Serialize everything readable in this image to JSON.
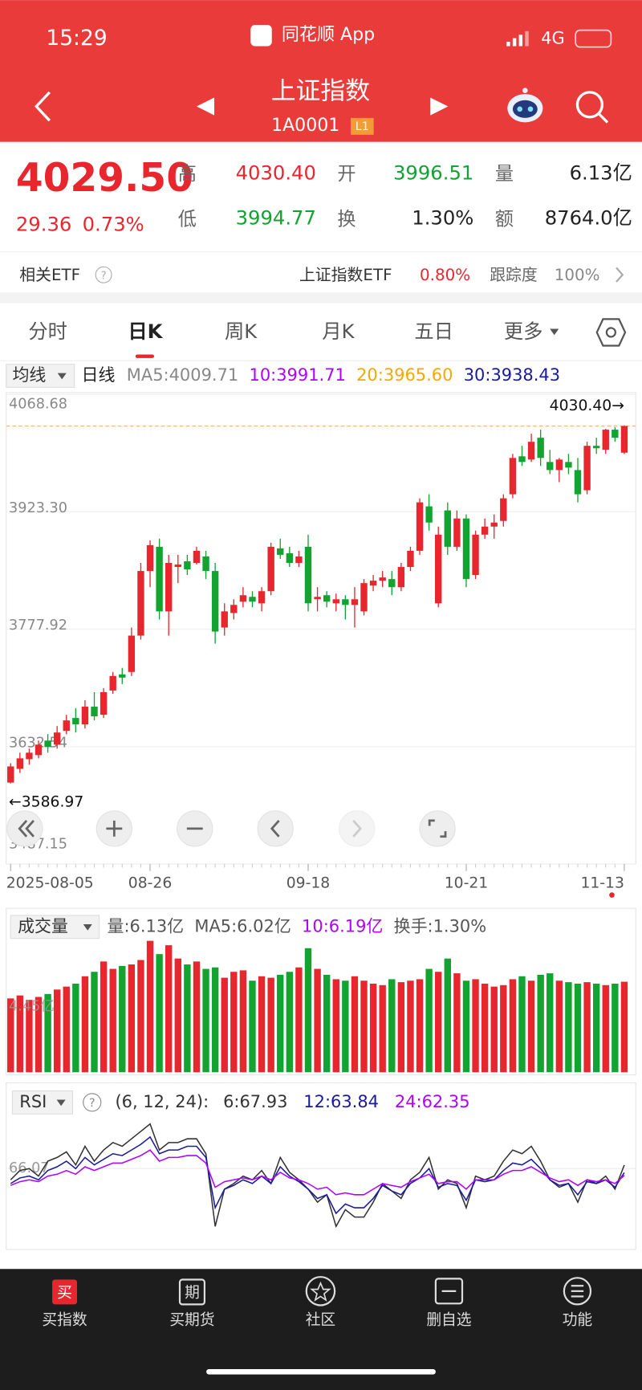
{
  "status_bar": {
    "time": "15:29",
    "app": "同花顺 App",
    "network": "4G"
  },
  "header": {
    "title": "上证指数",
    "code": "1A0001",
    "badge": "L1"
  },
  "quote": {
    "price": "4029.50",
    "change": "29.36",
    "change_pct": "0.73%",
    "fields": [
      {
        "label": "高",
        "value": "4030.40"
      },
      {
        "label": "开",
        "value": "3996.51"
      },
      {
        "label": "量",
        "value": "6.13亿"
      },
      {
        "label": "低",
        "value": "3994.77"
      },
      {
        "label": "换",
        "value": "1.30%"
      },
      {
        "label": "额",
        "value": "8764.0亿"
      }
    ]
  },
  "etf": {
    "label": "相关ETF",
    "help": "?",
    "name": "上证指数ETF",
    "change": "0.80%",
    "tracking_label": "跟踪度",
    "tracking": "100%"
  },
  "tabs": [
    "分时",
    "日K",
    "周K",
    "月K",
    "五日",
    "更多"
  ],
  "kline": {
    "type": "candlestick",
    "legend_button": "均线",
    "period": "日线",
    "ma_labels": [
      "MA5:4009.71",
      "10:3991.71",
      "20:3965.60",
      "30:3938.43"
    ],
    "ma_colors": [
      "#888888",
      "#b000ff",
      "#f2a900",
      "#1a1aa0"
    ],
    "up_color": "#e8262d",
    "down_color": "#12a331",
    "categories": [
      "2025-08-05",
      null,
      null,
      null,
      null,
      null,
      null,
      null,
      null,
      null,
      null,
      null,
      null,
      null,
      null,
      "08-26",
      null,
      null,
      null,
      null,
      null,
      null,
      null,
      null,
      null,
      null,
      null,
      null,
      null,
      null,
      null,
      null,
      "09-18",
      null,
      null,
      null,
      null,
      null,
      null,
      null,
      null,
      null,
      null,
      null,
      null,
      null,
      null,
      null,
      null,
      "10-21",
      null,
      null,
      null,
      null,
      null,
      null,
      null,
      null,
      null,
      null,
      null,
      null,
      null,
      null,
      null,
      null,
      "11-13"
    ],
    "open": [
      3588,
      3605,
      3617,
      3622,
      3640,
      3635,
      3652,
      3668,
      3660,
      3682,
      3672,
      3702,
      3722,
      3725,
      3770,
      3850,
      3880,
      3800,
      3855,
      3862,
      3860,
      3868,
      3850,
      3780,
      3798,
      3812,
      3818,
      3810,
      3825,
      3878,
      3872,
      3860,
      3880,
      3815,
      3820,
      3810,
      3815,
      3808,
      3800,
      3832,
      3838,
      3840,
      3830,
      3855,
      3875,
      3930,
      3810,
      3925,
      3880,
      3915,
      3845,
      3895,
      3905,
      3912,
      3945,
      3992,
      3988,
      4015,
      3985,
      3975,
      3985,
      3975,
      3950,
      4005,
      4000,
      4025,
      3996.51
    ],
    "high": [
      3612,
      3625,
      3630,
      3640,
      3648,
      3658,
      3672,
      3680,
      3690,
      3700,
      3705,
      3725,
      3730,
      3780,
      3860,
      3888,
      3890,
      3870,
      3870,
      3870,
      3880,
      3875,
      3860,
      3810,
      3815,
      3830,
      3825,
      3830,
      3885,
      3890,
      3880,
      3875,
      3895,
      3830,
      3825,
      3822,
      3820,
      3830,
      3840,
      3845,
      3850,
      3850,
      3860,
      3880,
      3940,
      3945,
      3905,
      3935,
      3925,
      3920,
      3900,
      3915,
      3920,
      3945,
      3995,
      4005,
      4020,
      4025,
      4000,
      3990,
      3995,
      3990,
      4010,
      4015,
      4026,
      4028,
      4030.4
    ],
    "low": [
      3586.97,
      3600,
      3610,
      3618,
      3625,
      3630,
      3648,
      3650,
      3655,
      3665,
      3668,
      3698,
      3710,
      3720,
      3765,
      3830,
      3790,
      3770,
      3835,
      3845,
      3858,
      3840,
      3760,
      3770,
      3790,
      3805,
      3805,
      3800,
      3820,
      3865,
      3855,
      3855,
      3800,
      3800,
      3805,
      3800,
      3790,
      3780,
      3795,
      3825,
      3830,
      3820,
      3825,
      3850,
      3870,
      3900,
      3805,
      3870,
      3875,
      3830,
      3840,
      3890,
      3890,
      3905,
      3940,
      3980,
      3985,
      3980,
      3970,
      3960,
      3970,
      3935,
      3945,
      3995,
      3995,
      4010,
      3994.77
    ],
    "close": [
      3608,
      3618,
      3625,
      3635,
      3632,
      3650,
      3665,
      3660,
      3682,
      3670,
      3700,
      3720,
      3718,
      3770,
      3850,
      3882,
      3800,
      3860,
      3858,
      3852,
      3875,
      3850,
      3775,
      3800,
      3808,
      3820,
      3812,
      3825,
      3880,
      3870,
      3860,
      3868,
      3810,
      3818,
      3812,
      3815,
      3808,
      3815,
      3835,
      3838,
      3842,
      3830,
      3855,
      3875,
      3935,
      3910,
      3895,
      3880,
      3915,
      3840,
      3895,
      3905,
      3910,
      3940,
      3990,
      3985,
      4010,
      3990,
      3975,
      3988,
      3978,
      3945,
      4005,
      4002,
      4025,
      4015,
      4029.5
    ],
    "ylim": [
      3487.15,
      4068.68
    ],
    "yticks": [
      3487.15,
      3632.54,
      3777.92,
      {
        "value": 3923.3,
        "label": "3923.30"
      },
      4068.68
    ],
    "high_marker": "4030.40→",
    "low_marker": "←3586.97"
  },
  "volume": {
    "type": "bar",
    "legend_button": "成交量",
    "legend": [
      {
        "text": "量:6.13亿",
        "color": "#555555"
      },
      {
        "text": "MA5:6.02亿",
        "color": "#555555"
      },
      {
        "text": "10:6.19亿",
        "color": "#b000ff"
      },
      {
        "text": "换手:1.30%",
        "color": "#555555"
      }
    ],
    "values": [
      5.0,
      5.2,
      4.9,
      5.1,
      5.3,
      5.6,
      5.8,
      6.0,
      6.5,
      6.8,
      7.5,
      7.0,
      7.2,
      7.3,
      7.6,
      8.9,
      8.0,
      8.6,
      7.7,
      7.3,
      7.5,
      7.0,
      7.1,
      6.4,
      6.8,
      6.9,
      6.2,
      6.5,
      6.4,
      6.6,
      6.8,
      7.1,
      8.4,
      7.0,
      6.6,
      6.3,
      6.2,
      6.5,
      6.2,
      6.0,
      5.9,
      6.3,
      6.1,
      6.2,
      6.3,
      7.0,
      6.8,
      7.7,
      6.7,
      6.2,
      6.3,
      6.0,
      5.8,
      5.9,
      6.3,
      6.5,
      6.2,
      6.6,
      6.7,
      6.2,
      6.1,
      6.0,
      6.1,
      6.0,
      5.9,
      6.0,
      6.13
    ],
    "ylim": [
      0,
      9
    ],
    "yticks": [
      {
        "value": 4.45,
        "label": "4.45亿"
      }
    ]
  },
  "rsi": {
    "type": "line",
    "legend_button": "RSI",
    "help": "?",
    "params": "(6, 12, 24):",
    "series": [
      {
        "name": "6:67.93",
        "color": "#333333",
        "values": [
          60,
          65,
          66,
          62,
          70,
          72,
          75,
          68,
          78,
          70,
          76,
          80,
          78,
          82,
          86,
          90,
          76,
          80,
          80,
          82,
          82,
          74,
          35,
          55,
          58,
          62,
          60,
          65,
          58,
          72,
          64,
          60,
          55,
          48,
          52,
          35,
          44,
          40,
          40,
          48,
          58,
          54,
          50,
          60,
          64,
          72,
          55,
          60,
          58,
          45,
          62,
          60,
          62,
          70,
          76,
          74,
          78,
          70,
          60,
          56,
          58,
          48,
          60,
          58,
          62,
          55,
          67.93
        ]
      },
      {
        "name": "12:63.84",
        "color": "#1a1aa0",
        "values": [
          58,
          61,
          62,
          60,
          65,
          67,
          70,
          66,
          72,
          68,
          71,
          74,
          73,
          76,
          79,
          83,
          74,
          76,
          76,
          78,
          78,
          72,
          45,
          55,
          57,
          60,
          58,
          62,
          58,
          67,
          62,
          59,
          55,
          50,
          52,
          42,
          47,
          45,
          45,
          50,
          57,
          54,
          52,
          58,
          61,
          66,
          56,
          58,
          57,
          49,
          60,
          59,
          60,
          65,
          69,
          68,
          71,
          66,
          60,
          57,
          58,
          52,
          59,
          58,
          60,
          56,
          63.84
        ]
      },
      {
        "name": "24:62.35",
        "color": "#b000ff",
        "values": [
          57,
          59,
          60,
          59,
          62,
          63,
          65,
          63,
          67,
          65,
          67,
          69,
          69,
          71,
          73,
          76,
          70,
          72,
          72,
          73,
          73,
          69,
          56,
          59,
          60,
          61,
          60,
          62,
          60,
          64,
          61,
          60,
          58,
          55,
          56,
          52,
          53,
          52,
          52,
          55,
          58,
          57,
          56,
          59,
          61,
          63,
          58,
          59,
          59,
          55,
          60,
          60,
          60,
          63,
          65,
          65,
          67,
          64,
          61,
          59,
          60,
          57,
          60,
          59,
          60,
          58,
          62.35
        ]
      }
    ],
    "ylim": [
      25,
      93
    ],
    "yticks": [
      66.07
    ]
  },
  "nav": [
    {
      "icon": "买",
      "label": "买指数"
    },
    {
      "icon": "期",
      "label": "买期货"
    },
    {
      "label": "社区"
    },
    {
      "label": "删自选"
    },
    {
      "label": "功能"
    }
  ]
}
